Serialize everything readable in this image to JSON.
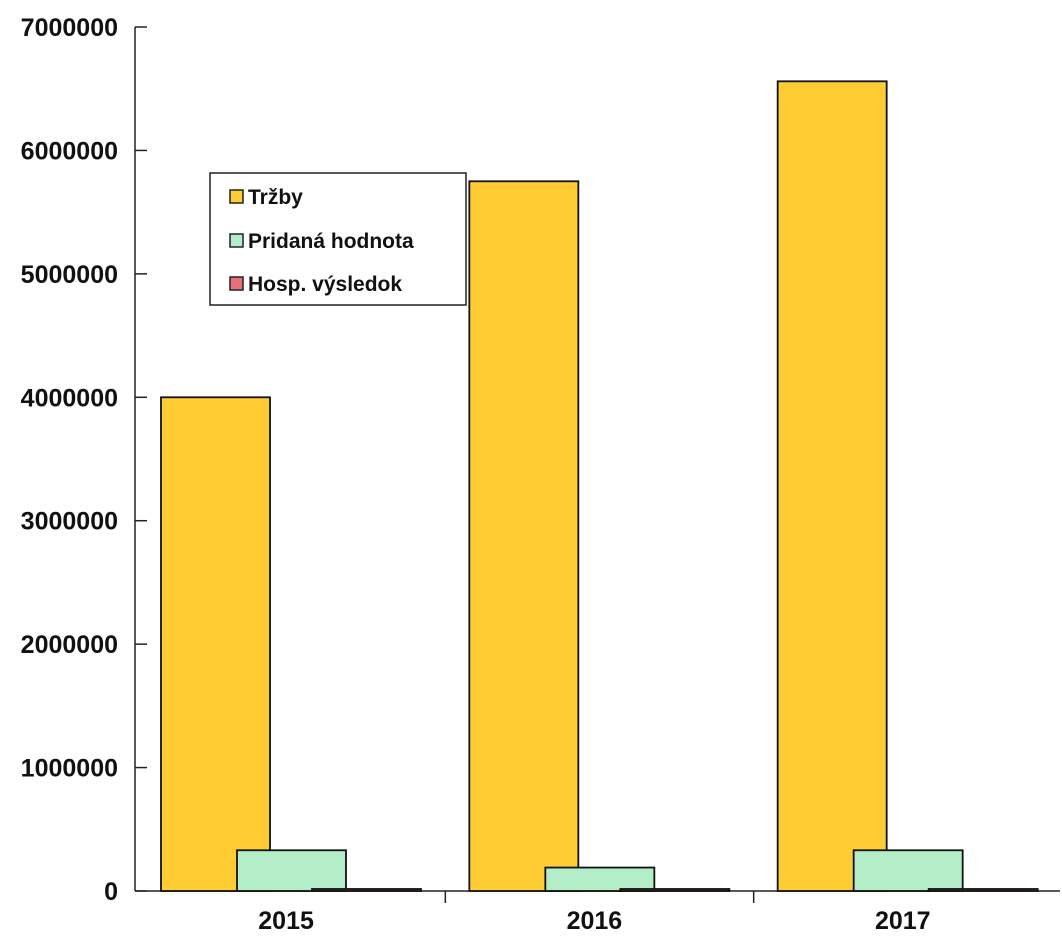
{
  "chart_data": {
    "type": "bar",
    "categories": [
      "2015",
      "2016",
      "2017"
    ],
    "series": [
      {
        "name": "Tržby",
        "values": [
          4000000,
          5750000,
          6560000
        ],
        "color": "#FFCC33"
      },
      {
        "name": "Pridaná hodnota",
        "values": [
          330000,
          190000,
          330000
        ],
        "color": "#B3EEC8"
      },
      {
        "name": "Hosp. výsledok",
        "values": [
          8000,
          8000,
          8000
        ],
        "color": "#E8707A"
      }
    ],
    "y_ticks": [
      "0",
      "1000000",
      "2000000",
      "3000000",
      "4000000",
      "5000000",
      "6000000",
      "7000000"
    ],
    "ylim": [
      0,
      7000000
    ],
    "legend_position": "top-left",
    "grid": false
  }
}
